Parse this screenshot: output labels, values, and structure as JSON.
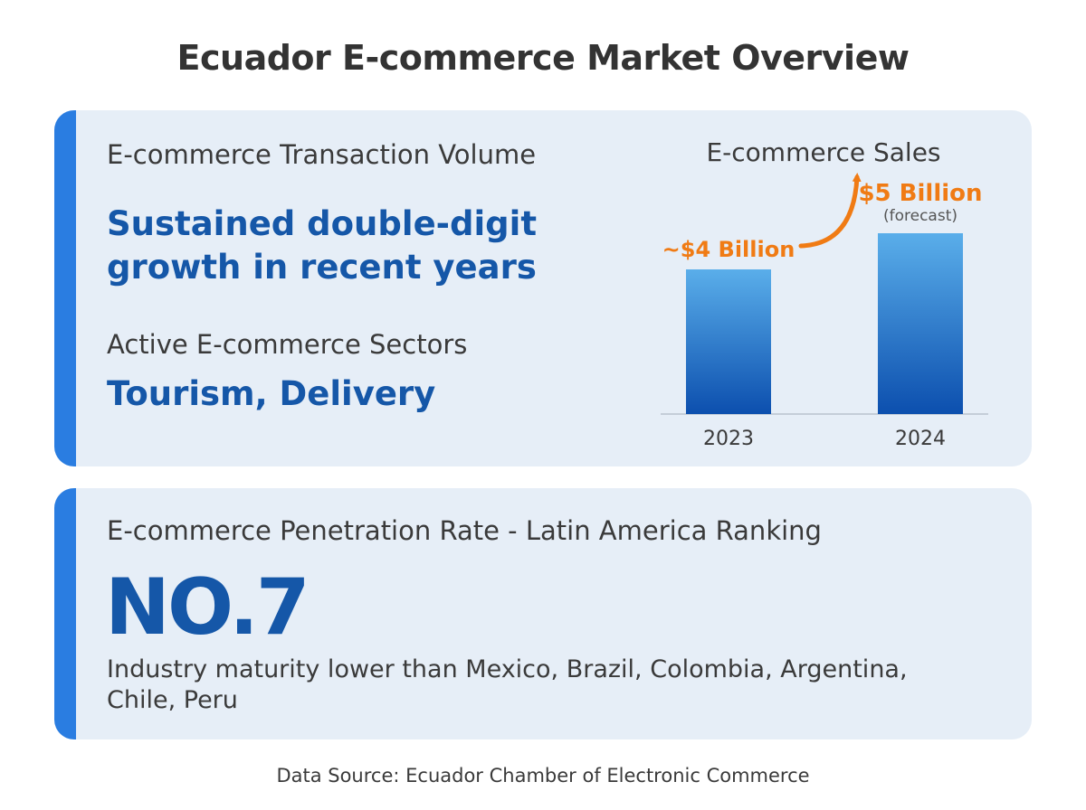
{
  "title": "Ecuador E-commerce Market Overview",
  "transaction": {
    "label": "E-commerce Transaction Volume",
    "value": "Sustained double-digit growth in recent years"
  },
  "sectors": {
    "label": "Active E-commerce Sectors",
    "value": "Tourism, Delivery"
  },
  "ranking": {
    "label": "E-commerce Penetration Rate - Latin America Ranking",
    "value": "NO.7",
    "note": "Industry maturity lower than Mexico, Brazil, Colombia, Argentina, Chile, Peru"
  },
  "source": "Data Source: Ecuador Chamber of Electronic Commerce",
  "colors": {
    "accent_bar": "#2a7de1",
    "card_bg": "#e6eef7",
    "headline": "#1557a8",
    "annotation": "#f07b14",
    "bar_top": "#5aaeea",
    "bar_bottom": "#0c4fae"
  },
  "chart_data": {
    "type": "bar",
    "title": "E-commerce Sales",
    "categories": [
      "2023",
      "2024"
    ],
    "values": [
      4,
      5
    ],
    "value_labels": [
      "~$4 Billion",
      "$5 Billion"
    ],
    "notes": [
      "",
      "(forecast)"
    ],
    "unit": "USD billion",
    "ylim": [
      0,
      5.4
    ],
    "grid": false,
    "legend": "none"
  }
}
